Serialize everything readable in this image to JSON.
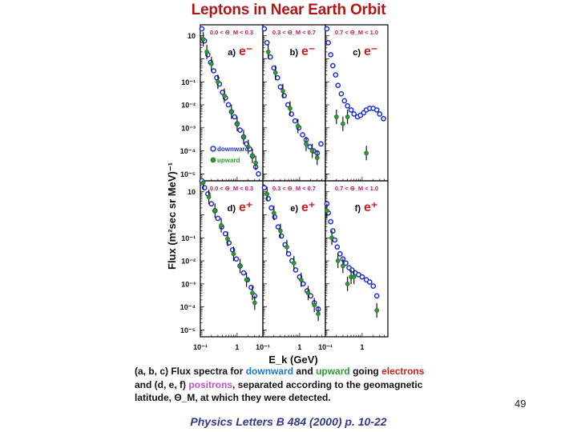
{
  "title": "Leptons in Near Earth Orbit",
  "ylabel": "Flux (m²sec sr MeV)⁻¹",
  "xlabel": "E_k (GeV)",
  "legend": {
    "downward": "downward",
    "upward": "upward"
  },
  "x_ticks": [
    "10⁻¹",
    "1",
    "10⁻¹",
    "1",
    "10⁻¹",
    "1"
  ],
  "y_ticks": [
    "10",
    "10⁻¹",
    "10⁻²",
    "10⁻³",
    "10⁻⁴",
    "10⁻⁵"
  ],
  "caption": {
    "l1_a": "(a, b, c) Flux spectra for ",
    "l1_down": "downward",
    "l1_b": "  and ",
    "l1_up": "upward",
    "l1_c": " going ",
    "l1_elec": "electrons",
    "l2_a": "and (d, e, f) ",
    "l2_pos": "positrons",
    "l2_b": ", separated according to the geomagnetic",
    "l3": "latitude, Θ_M, at which they were detected."
  },
  "reference": "Physics Letters B 484 (2000) p. 10-22",
  "page_number": "49",
  "colors": {
    "title": "#b01818",
    "downward": "#1b2fd6",
    "upward": "#2e9a32",
    "range": "#c0175a",
    "particle": "#d01f1f"
  },
  "chart_data": [
    {
      "type": "scatter",
      "panel": "a",
      "particle": "e⁻",
      "range": "0.0 < Θ_M < 0.3",
      "xlim": [
        0.1,
        5
      ],
      "ylim": [
        5e-06,
        30
      ],
      "log": true,
      "series": [
        {
          "name": "downward",
          "x": [
            0.11,
            0.13,
            0.16,
            0.19,
            0.23,
            0.28,
            0.33,
            0.4,
            0.48,
            0.58,
            0.7,
            0.85,
            1.0,
            1.2,
            1.5,
            1.8,
            2.2,
            2.6,
            3.2,
            3.8
          ],
          "y": [
            20,
            6,
            1.5,
            0.7,
            0.3,
            0.15,
            0.08,
            0.035,
            0.02,
            0.01,
            0.005,
            0.003,
            0.0015,
            0.0008,
            0.0004,
            0.0002,
            0.00012,
            6e-05,
            2e-05,
            1e-05
          ]
        },
        {
          "name": "upward",
          "x": [
            0.12,
            0.15,
            0.2,
            0.3,
            0.45,
            0.7,
            1.0,
            1.5,
            2.0,
            2.6,
            3.2
          ],
          "y": [
            7,
            2,
            0.6,
            0.1,
            0.025,
            0.005,
            0.0015,
            0.0004,
            0.00015,
            6e-05,
            3e-05
          ]
        }
      ]
    },
    {
      "type": "scatter",
      "panel": "b",
      "particle": "e⁻",
      "range": "0.3 < Θ_M < 0.7",
      "xlim": [
        0.1,
        5
      ],
      "ylim": [
        5e-06,
        30
      ],
      "log": true,
      "series": [
        {
          "name": "downward",
          "x": [
            0.11,
            0.13,
            0.16,
            0.2,
            0.25,
            0.3,
            0.38,
            0.48,
            0.6,
            0.75,
            0.95,
            1.2,
            1.5,
            1.9,
            2.4,
            3.0,
            3.8
          ],
          "y": [
            20,
            5,
            1.2,
            0.4,
            0.15,
            0.06,
            0.025,
            0.01,
            0.004,
            0.002,
            0.001,
            0.0005,
            0.0003,
            0.00015,
            0.0001,
            8e-05,
            0.0002
          ]
        },
        {
          "name": "upward",
          "x": [
            0.14,
            0.22,
            0.35,
            0.55,
            0.9,
            1.5,
            2.2,
            3.0
          ],
          "y": [
            2,
            0.25,
            0.04,
            0.007,
            0.0012,
            0.0002,
            0.0001,
            5e-05
          ]
        }
      ]
    },
    {
      "type": "scatter",
      "panel": "c",
      "particle": "e⁻",
      "range": "0.7 < Θ_M < 1.0",
      "xlim": [
        0.1,
        5
      ],
      "ylim": [
        5e-06,
        30
      ],
      "log": true,
      "series": [
        {
          "name": "downward",
          "x": [
            0.11,
            0.12,
            0.14,
            0.16,
            0.19,
            0.22,
            0.27,
            0.33,
            0.4,
            0.5,
            0.6,
            0.75,
            0.9,
            1.1,
            1.3,
            1.6,
            2.0,
            2.5,
            3.0,
            3.8
          ],
          "y": [
            20,
            5,
            1.5,
            0.5,
            0.2,
            0.07,
            0.03,
            0.015,
            0.009,
            0.006,
            0.004,
            0.003,
            0.0035,
            0.0045,
            0.006,
            0.007,
            0.007,
            0.006,
            0.004,
            0.0025
          ]
        },
        {
          "name": "upward",
          "x": [
            0.2,
            0.3,
            0.4,
            1.3
          ],
          "y": [
            0.003,
            0.0015,
            0.003,
            8e-05
          ]
        }
      ]
    },
    {
      "type": "scatter",
      "panel": "d",
      "particle": "e⁺",
      "range": "0.0 < Θ_M < 0.3",
      "xlim": [
        0.1,
        5
      ],
      "ylim": [
        5e-06,
        30
      ],
      "log": true,
      "series": [
        {
          "name": "downward",
          "x": [
            0.11,
            0.13,
            0.16,
            0.2,
            0.25,
            0.3,
            0.38,
            0.48,
            0.6,
            0.75,
            0.95,
            1.2,
            1.5,
            1.9,
            2.4,
            3.0
          ],
          "y": [
            30,
            15,
            8,
            3,
            1.5,
            0.7,
            0.3,
            0.15,
            0.06,
            0.03,
            0.012,
            0.006,
            0.003,
            0.0015,
            0.0007,
            0.0003
          ]
        },
        {
          "name": "upward",
          "x": [
            0.12,
            0.17,
            0.25,
            0.37,
            0.55,
            0.8,
            1.2,
            1.8,
            2.6,
            3.0
          ],
          "y": [
            25,
            6,
            1.5,
            0.35,
            0.09,
            0.02,
            0.006,
            0.0015,
            0.0004,
            0.00015
          ]
        }
      ]
    },
    {
      "type": "scatter",
      "panel": "e",
      "particle": "e⁺",
      "range": "0.3 < Θ_M < 0.7",
      "xlim": [
        0.1,
        5
      ],
      "ylim": [
        5e-06,
        30
      ],
      "log": true,
      "series": [
        {
          "name": "downward",
          "x": [
            0.11,
            0.14,
            0.17,
            0.21,
            0.26,
            0.32,
            0.4,
            0.5,
            0.62,
            0.78,
            1.0,
            1.25,
            1.6,
            2.0,
            2.5,
            3.2
          ],
          "y": [
            15,
            5,
            2,
            0.8,
            0.3,
            0.12,
            0.05,
            0.02,
            0.01,
            0.004,
            0.002,
            0.001,
            0.0005,
            0.0003,
            0.00015,
            8e-05
          ]
        },
        {
          "name": "upward",
          "x": [
            0.13,
            0.2,
            0.3,
            0.45,
            0.7,
            1.1,
            1.7,
            2.5,
            3.2
          ],
          "y": [
            8,
            1.2,
            0.2,
            0.04,
            0.008,
            0.0015,
            0.0004,
            0.00012,
            5e-05
          ]
        }
      ]
    },
    {
      "type": "scatter",
      "panel": "f",
      "particle": "e⁺",
      "range": "0.7 < Θ_M < 1.0",
      "xlim": [
        0.1,
        5
      ],
      "ylim": [
        5e-06,
        30
      ],
      "log": true,
      "series": [
        {
          "name": "downward",
          "x": [
            0.11,
            0.12,
            0.14,
            0.16,
            0.18,
            0.21,
            0.25,
            0.3,
            0.36,
            0.44,
            0.53,
            0.65,
            0.8,
            1.0,
            1.3,
            1.6,
            2.0,
            2.5
          ],
          "y": [
            3,
            1.2,
            0.5,
            0.2,
            0.08,
            0.04,
            0.02,
            0.012,
            0.008,
            0.005,
            0.004,
            0.003,
            0.0025,
            0.002,
            0.0015,
            0.0012,
            0.0008,
            0.0003
          ]
        },
        {
          "name": "upward",
          "x": [
            0.11,
            0.15,
            0.22,
            0.3,
            0.4,
            0.5,
            0.6,
            2.5
          ],
          "y": [
            1.5,
            0.1,
            0.01,
            0.006,
            0.001,
            0.002,
            0.002,
            7e-05
          ]
        }
      ]
    }
  ]
}
